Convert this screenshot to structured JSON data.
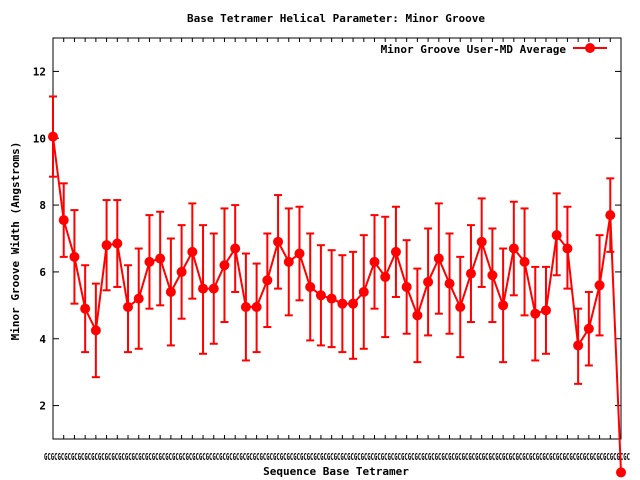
{
  "chart_data": {
    "type": "line",
    "title": "Base Tetramer Helical Parameter: Minor Groove",
    "xlabel": "Sequence Base Tetramer",
    "ylabel": "Minor Groove Width (Angstroms)",
    "ylim": [
      1,
      13
    ],
    "yticks": [
      2,
      4,
      6,
      8,
      10,
      12
    ],
    "grid": false,
    "legend_position": "top-right",
    "categories_text": "GCGCGCGCGCGCGCGCGCGCGCGCGCGCGCGCGCGCGCGCGCGCGCGCGCGCGCGCGCGCGCGCGCGCGCGCGCGCGCGCGCGCGCGCGCGCGCGCGCGCGCGCGCGCGCGCGCGCGCGCGCGCGCGCGCGCGCGCGCGCGCGCGCGCGCGCGCGCGCGCGCGCGCGCGCGCGC",
    "series": [
      {
        "name": "Minor Groove User-MD Average",
        "color": "#ff0000",
        "x": [
          1,
          2,
          3,
          4,
          5,
          6,
          7,
          8,
          9,
          10,
          11,
          12,
          13,
          14,
          15,
          16,
          17,
          18,
          19,
          20,
          21,
          22,
          23,
          24,
          25,
          26,
          27,
          28,
          29,
          30,
          31,
          32,
          33,
          34,
          35,
          36,
          37,
          38,
          39,
          40,
          41,
          42,
          43,
          44,
          45,
          46,
          47,
          48,
          49,
          50,
          51,
          52,
          53,
          54
        ],
        "values": [
          10.05,
          7.55,
          6.45,
          4.9,
          4.25,
          6.8,
          6.85,
          4.95,
          5.2,
          6.3,
          6.4,
          5.4,
          6.0,
          6.6,
          5.5,
          5.5,
          6.2,
          6.7,
          4.95,
          4.95,
          5.75,
          6.9,
          6.3,
          6.55,
          5.55,
          5.3,
          5.2,
          5.05,
          5.05,
          5.4,
          6.3,
          5.85,
          6.6,
          5.55,
          4.7,
          5.7,
          6.4,
          5.65,
          4.95,
          5.95,
          6.9,
          5.9,
          5.0,
          6.7,
          6.3,
          4.75,
          4.85,
          7.1,
          6.7,
          3.8,
          4.3,
          5.6,
          7.7,
          0
        ],
        "err_low": [
          8.85,
          6.45,
          5.05,
          3.6,
          2.85,
          5.45,
          5.55,
          3.6,
          3.7,
          4.9,
          5.0,
          3.8,
          4.6,
          5.2,
          3.55,
          3.85,
          4.5,
          5.4,
          3.35,
          3.6,
          4.35,
          5.5,
          4.7,
          5.15,
          3.95,
          3.8,
          3.75,
          3.6,
          3.4,
          3.7,
          4.9,
          4.05,
          5.25,
          4.15,
          3.3,
          4.1,
          4.75,
          4.15,
          3.45,
          4.5,
          5.55,
          4.5,
          3.3,
          5.3,
          4.7,
          3.35,
          3.55,
          5.9,
          5.5,
          2.65,
          3.2,
          4.1,
          6.6,
          0
        ],
        "err_high": [
          11.25,
          8.65,
          7.85,
          6.2,
          5.65,
          8.15,
          8.15,
          6.2,
          6.7,
          7.7,
          7.8,
          7.0,
          7.4,
          8.05,
          7.4,
          7.15,
          7.9,
          8.0,
          6.55,
          6.25,
          7.15,
          8.3,
          7.9,
          7.95,
          7.15,
          6.8,
          6.65,
          6.5,
          6.6,
          7.1,
          7.7,
          7.65,
          7.95,
          6.95,
          6.1,
          7.3,
          8.05,
          7.15,
          6.45,
          7.4,
          8.2,
          7.3,
          6.7,
          8.1,
          7.9,
          6.15,
          6.15,
          8.35,
          7.95,
          4.9,
          5.4,
          7.1,
          8.8,
          0
        ]
      }
    ]
  }
}
